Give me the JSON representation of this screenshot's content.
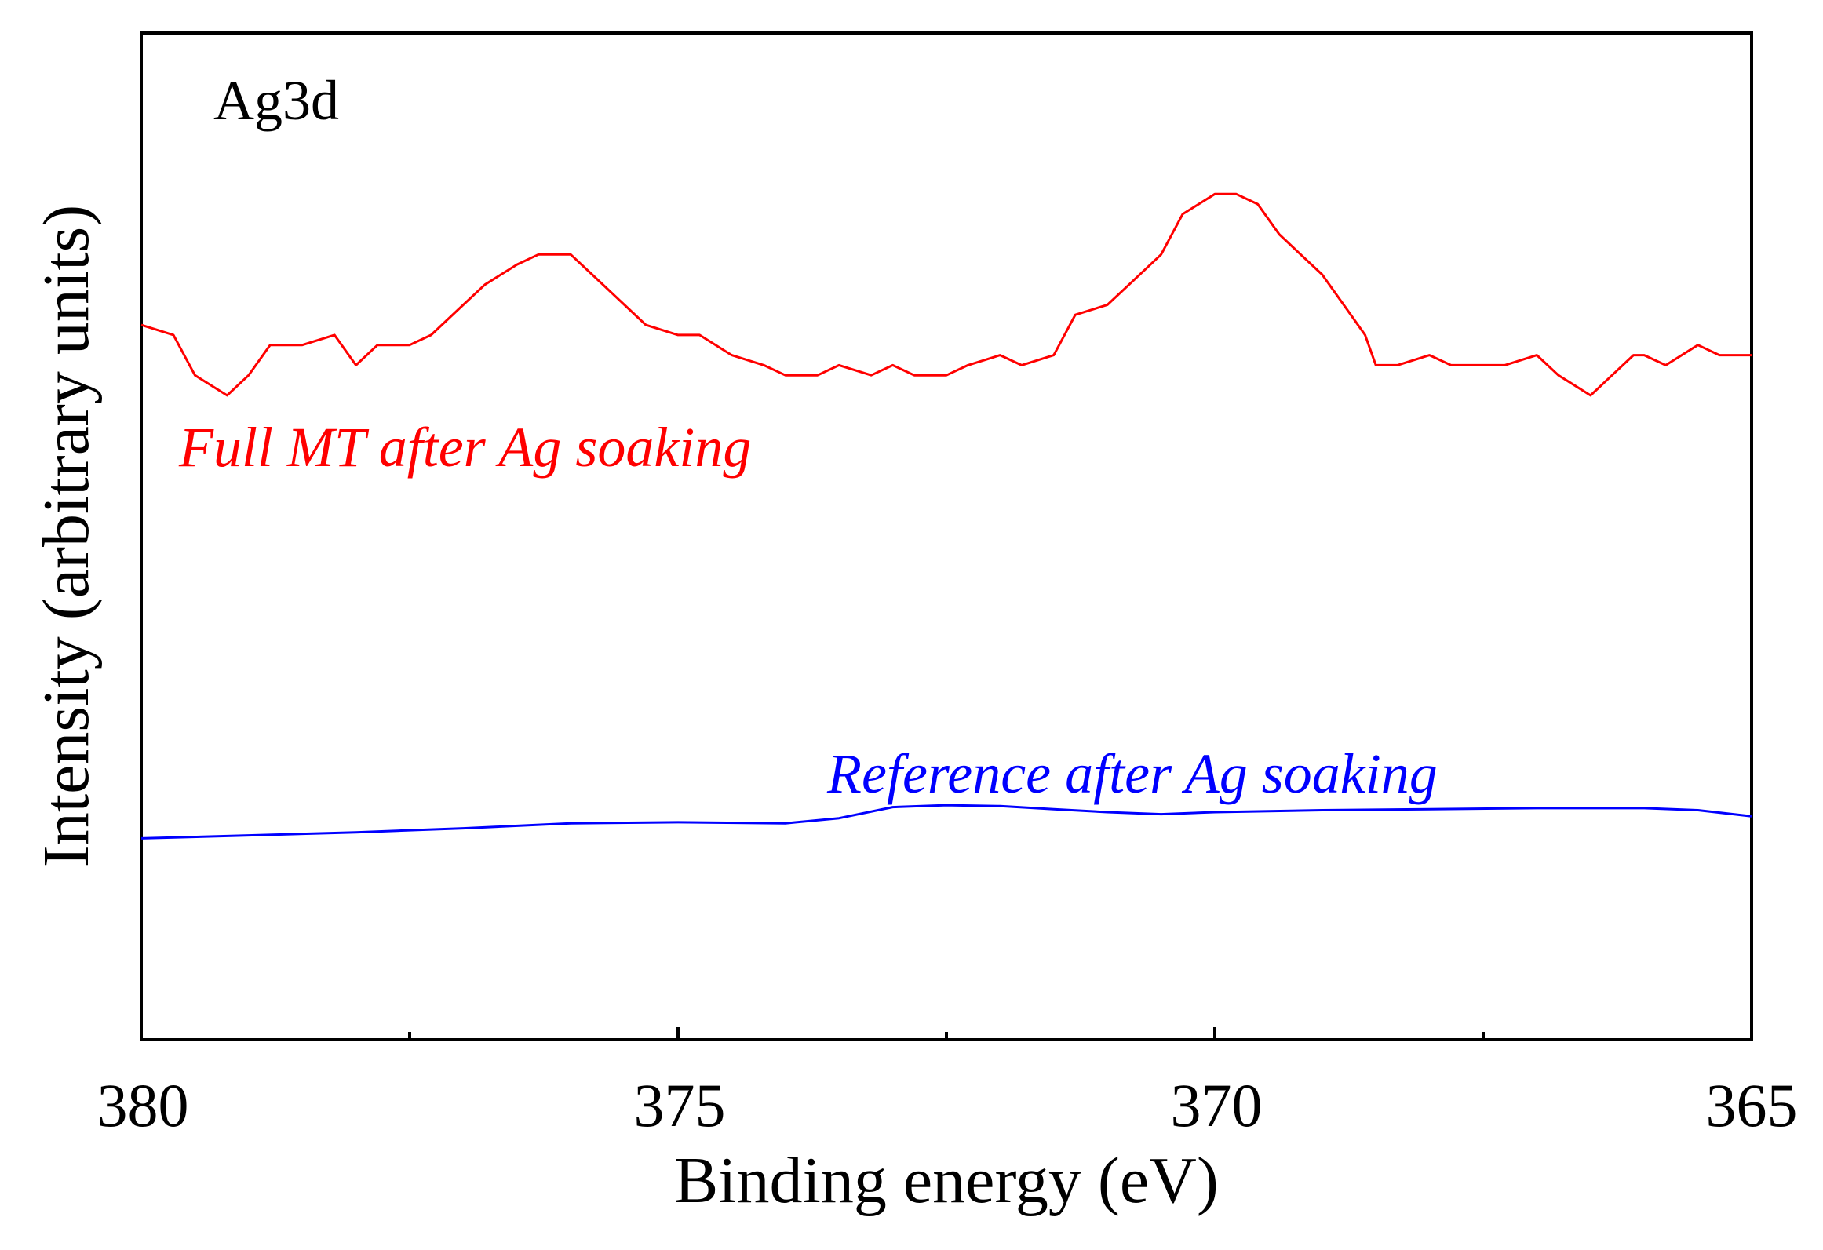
{
  "chart_data": {
    "type": "line",
    "panel_label": "Ag3d",
    "xlabel": "Binding energy (eV)",
    "ylabel": "Intensity (arbitrary units)",
    "xlim": [
      380,
      365
    ],
    "ylim": [
      0,
      100
    ],
    "x_ticks_major": [
      "380",
      "375",
      "370",
      "365"
    ],
    "x_ticks_minor": [
      377.5,
      372.5,
      367.5
    ],
    "y_ticks": [],
    "grid": false,
    "series": [
      {
        "name": "Full MT after Ag soaking",
        "color": "#ff0000",
        "x": [
          380,
          379.7,
          379.5,
          379.2,
          379.0,
          378.8,
          378.5,
          378.2,
          378.0,
          377.8,
          377.5,
          377.3,
          377.0,
          376.8,
          376.5,
          376.3,
          376.0,
          375.8,
          375.5,
          375.3,
          375.0,
          374.8,
          374.5,
          374.2,
          374.0,
          373.7,
          373.5,
          373.2,
          373.0,
          372.8,
          372.5,
          372.3,
          372.0,
          371.8,
          371.5,
          371.3,
          371.0,
          370.8,
          370.5,
          370.3,
          370.0,
          369.8,
          369.6,
          369.4,
          369.2,
          369.0,
          368.8,
          368.6,
          368.5,
          368.3,
          368.0,
          367.8,
          367.5,
          367.3,
          367.0,
          366.8,
          366.5,
          366.3,
          366.1,
          366.0,
          365.8,
          365.5,
          365.3,
          365.0
        ],
        "values": [
          71,
          70,
          66,
          64,
          66,
          69,
          69,
          70,
          67,
          69,
          69,
          70,
          73,
          75,
          77,
          78,
          78,
          76,
          73,
          71,
          70,
          70,
          68,
          67,
          66,
          66,
          67,
          66,
          67,
          66,
          66,
          67,
          68,
          67,
          68,
          72,
          73,
          75,
          78,
          82,
          84,
          84,
          83,
          80,
          78,
          76,
          73,
          70,
          67,
          67,
          68,
          67,
          67,
          67,
          68,
          66,
          64,
          66,
          68,
          68,
          67,
          69,
          68,
          68
        ]
      },
      {
        "name": "Reference after Ag soaking",
        "color": "#0000ff",
        "x": [
          380,
          379.0,
          378.0,
          377.0,
          376.0,
          375.0,
          374.0,
          373.5,
          373.0,
          372.5,
          372.0,
          371.5,
          371.0,
          370.5,
          370.0,
          369.0,
          368.0,
          367.0,
          366.5,
          366.0,
          365.5,
          365.0
        ],
        "values": [
          20,
          20.3,
          20.6,
          21.0,
          21.5,
          21.6,
          21.5,
          22.0,
          23.1,
          23.3,
          23.2,
          22.9,
          22.6,
          22.4,
          22.6,
          22.8,
          22.9,
          23.0,
          23.0,
          23.0,
          22.8,
          22.2
        ]
      }
    ],
    "annotations": [
      {
        "text": "Full MT after Ag soaking",
        "color": "#ff0000",
        "style": "italic"
      },
      {
        "text": "Reference after Ag soaking",
        "color": "#0000ff",
        "style": "italic"
      }
    ]
  }
}
